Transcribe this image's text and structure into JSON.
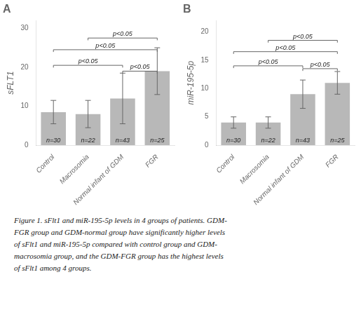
{
  "chart_data": [
    {
      "type": "bar",
      "title": "A",
      "ylabel": "sFLT1",
      "categories": [
        "Control",
        "Macrosomia",
        "Normal infant of GDM",
        "FGR"
      ],
      "values": [
        8.5,
        8.0,
        12.0,
        19.0
      ],
      "errors": [
        3.0,
        3.5,
        6.5,
        6.0
      ],
      "n_labels": [
        "n=30",
        "n=22",
        "n=43",
        "n=25"
      ],
      "significance_brackets": [
        {
          "from": "Control",
          "to": "Normal infant of GDM",
          "label": "p<0.05",
          "y": 20.5
        },
        {
          "from": "Control",
          "to": "FGR",
          "label": "p<0.05",
          "y": 24.5
        },
        {
          "from": "Macrosomia",
          "to": "FGR",
          "label": "p<0.05",
          "y": 27.5
        },
        {
          "from": "Normal infant of GDM",
          "to": "FGR",
          "label": "p<0.05",
          "y": 19.0
        }
      ],
      "color": "#b8b8b8",
      "ylim": [
        0,
        32
      ],
      "yticks": [
        0,
        10,
        20,
        30
      ],
      "grid": false
    },
    {
      "type": "bar",
      "title": "B",
      "ylabel": "miR-195-5p",
      "categories": [
        "Control",
        "Macrosomia",
        "Normal infant of GDM",
        "FGR"
      ],
      "values": [
        4.0,
        4.0,
        9.0,
        11.0
      ],
      "errors": [
        1.0,
        1.0,
        2.5,
        2.0
      ],
      "n_labels": [
        "n=30",
        "n=22",
        "n=43",
        "n=25"
      ],
      "significance_brackets": [
        {
          "from": "Control",
          "to": "Normal infant of GDM",
          "label": "p<0.05",
          "y": 14.0
        },
        {
          "from": "Control",
          "to": "FGR",
          "label": "p<0.05",
          "y": 16.5
        },
        {
          "from": "Macrosomia",
          "to": "FGR",
          "label": "p<0.05",
          "y": 18.5
        },
        {
          "from": "Normal infant of GDM",
          "to": "FGR",
          "label": "p<0.05",
          "y": 13.5
        }
      ],
      "color": "#b8b8b8",
      "ylim": [
        0,
        22
      ],
      "yticks": [
        0,
        5,
        10,
        15,
        20
      ],
      "grid": false
    }
  ],
  "caption": "Figure 1. sFlt1 and miR-195-5p levels in 4 groups of patients. GDM-\nFGR group and GDM-normal group have significantly higher levels\nof sFlt1 and miR-195-5p compared with control group and GDM-\nmacrosomia group, and the GDM-FGR group has the highest levels\nof sFlt1 among 4 groups."
}
